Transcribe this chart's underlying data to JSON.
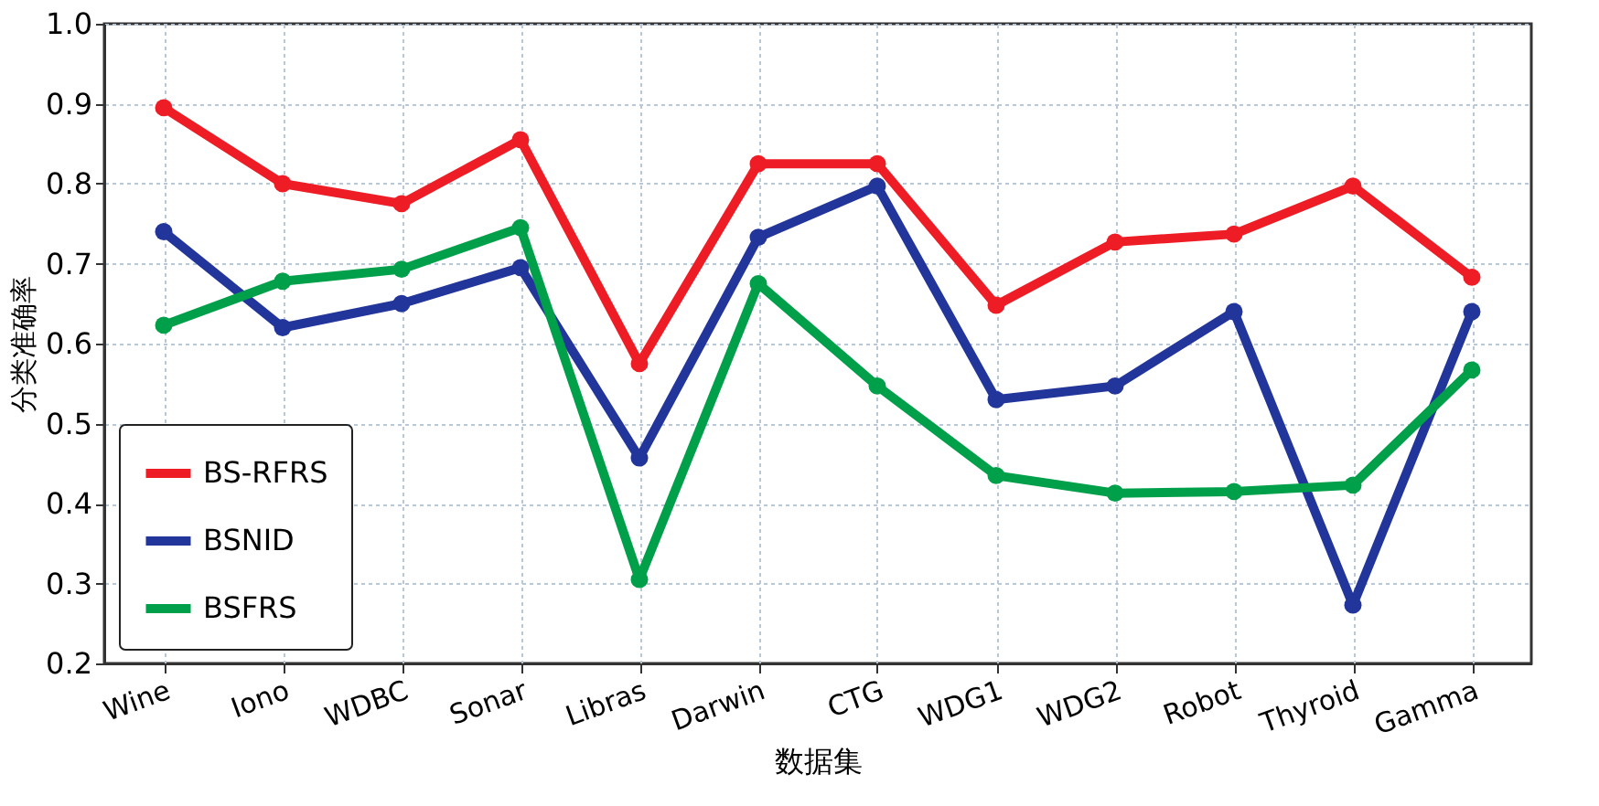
{
  "chart_data": {
    "type": "line",
    "xlabel": "数据集",
    "ylabel": "分类准确率",
    "categories": [
      "Wine",
      "Iono",
      "WDBC",
      "Sonar",
      "Libras",
      "Darwin",
      "CTG",
      "WDG1",
      "WDG2",
      "Robot",
      "Thyroid",
      "Gamma"
    ],
    "series": [
      {
        "name": "BS-RFRS",
        "color": "#ee1c25",
        "values": [
          0.895,
          0.8,
          0.775,
          0.855,
          0.575,
          0.825,
          0.825,
          0.648,
          0.727,
          0.737,
          0.797,
          0.683
        ]
      },
      {
        "name": "BSNID",
        "color": "#22359a",
        "values": [
          0.74,
          0.62,
          0.65,
          0.695,
          0.457,
          0.733,
          0.797,
          0.53,
          0.547,
          0.64,
          0.273,
          0.64
        ]
      },
      {
        "name": "BSFRS",
        "color": "#00a04a",
        "values": [
          0.623,
          0.678,
          0.693,
          0.745,
          0.305,
          0.675,
          0.547,
          0.435,
          0.413,
          0.415,
          0.423,
          0.567
        ]
      }
    ],
    "ylim": [
      0.2,
      1.0
    ],
    "yticks": [
      0.2,
      0.3,
      0.4,
      0.5,
      0.6,
      0.7,
      0.8,
      0.9,
      {
        "value": 1,
        "label": "1.0"
      }
    ],
    "grid": true,
    "legend": "bottom left",
    "marker": "circle",
    "line_style": "solid"
  }
}
